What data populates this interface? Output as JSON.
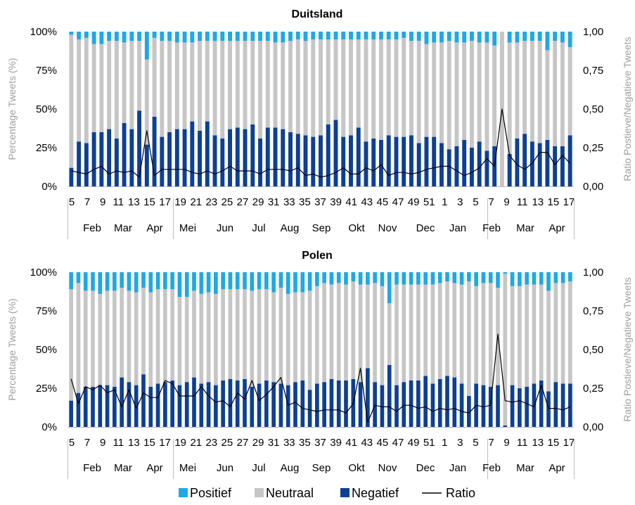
{
  "chart_data": [
    {
      "type": "bar",
      "stacked": true,
      "title": "Duitsland",
      "ylabel": "Percentage Tweets (%)",
      "y2label": "Ratio Postieve/Negatieve Tweets",
      "yticks": [
        "0%",
        "25%",
        "50%",
        "75%",
        "100%"
      ],
      "y2ticks": [
        "0,00",
        "0,25",
        "0,50",
        "0,75",
        "1,00"
      ],
      "ylim": [
        0,
        100
      ],
      "y2lim": [
        0,
        1
      ],
      "week_labels": [
        "5",
        "7",
        "9",
        "11",
        "13",
        "15",
        "17",
        "19",
        "21",
        "23",
        "25",
        "27",
        "29",
        "31",
        "33",
        "35",
        "37",
        "39",
        "41",
        "43",
        "45",
        "47",
        "49",
        "51",
        "1",
        "3",
        "5",
        "7",
        "9",
        "11",
        "13",
        "15",
        "17"
      ],
      "month_labels": [
        "Feb",
        "Mar",
        "Apr",
        "Mei",
        "Jun",
        "Jul",
        "Aug",
        "Sep",
        "Okt",
        "Nov",
        "Dec",
        "Jan",
        "Feb",
        "Mar",
        "Apr"
      ],
      "series": [
        {
          "name": "Negatief",
          "values": [
            12,
            29,
            28,
            35,
            35,
            37,
            31,
            41,
            37,
            49,
            27,
            45,
            32,
            35,
            37,
            37,
            42,
            36,
            42,
            33,
            31,
            37,
            38,
            37,
            40,
            31,
            38,
            38,
            37,
            35,
            34,
            33,
            32,
            33,
            40,
            43,
            32,
            33,
            38,
            29,
            31,
            30,
            33,
            32,
            32,
            33,
            28,
            32,
            32,
            28,
            24,
            26,
            30,
            25,
            29,
            23,
            26,
            0,
            21,
            31,
            34,
            29,
            28,
            30,
            26,
            26,
            33
          ]
        },
        {
          "name": "Neutraal",
          "values": [
            86,
            66,
            68,
            57,
            57,
            57,
            63,
            52,
            57,
            45,
            55,
            51,
            62,
            59,
            56,
            56,
            51,
            58,
            52,
            61,
            63,
            57,
            56,
            57,
            54,
            63,
            56,
            55,
            56,
            59,
            61,
            61,
            63,
            62,
            55,
            52,
            63,
            62,
            57,
            66,
            64,
            65,
            62,
            63,
            64,
            61,
            66,
            60,
            61,
            65,
            70,
            67,
            63,
            69,
            64,
            70,
            65,
            100,
            72,
            62,
            60,
            65,
            66,
            58,
            68,
            67,
            57
          ]
        },
        {
          "name": "Positief",
          "values": [
            2,
            5,
            4,
            8,
            8,
            6,
            6,
            7,
            6,
            6,
            18,
            4,
            6,
            6,
            7,
            7,
            7,
            6,
            6,
            6,
            6,
            6,
            6,
            6,
            6,
            6,
            6,
            7,
            7,
            6,
            5,
            6,
            5,
            5,
            5,
            5,
            5,
            5,
            5,
            5,
            5,
            5,
            5,
            5,
            4,
            6,
            6,
            8,
            7,
            7,
            6,
            7,
            7,
            6,
            7,
            7,
            9,
            0,
            7,
            7,
            6,
            6,
            6,
            12,
            6,
            7,
            10
          ]
        }
      ],
      "ratio": {
        "name": "Ratio",
        "values": [
          0.1,
          0.09,
          0.08,
          0.11,
          0.13,
          0.08,
          0.1,
          0.09,
          0.1,
          0.06,
          0.36,
          0.07,
          0.11,
          0.11,
          0.11,
          0.11,
          0.09,
          0.08,
          0.1,
          0.08,
          0.1,
          0.13,
          0.1,
          0.1,
          0.1,
          0.08,
          0.11,
          0.11,
          0.11,
          0.1,
          0.12,
          0.07,
          0.08,
          0.06,
          0.07,
          0.09,
          0.12,
          0.08,
          0.08,
          0.12,
          0.1,
          0.14,
          0.07,
          0.09,
          0.09,
          0.08,
          0.09,
          0.11,
          0.12,
          0.13,
          0.13,
          0.1,
          0.07,
          0.09,
          0.12,
          0.18,
          0.13,
          0.5,
          0.2,
          0.14,
          0.11,
          0.15,
          0.22,
          0.22,
          0.14,
          0.2,
          0.15
        ]
      }
    },
    {
      "type": "bar",
      "stacked": true,
      "title": "Polen",
      "ylabel": "Percentage Tweets (%)",
      "y2label": "Ratio Postieve/Negatieve Tweets",
      "yticks": [
        "0%",
        "25%",
        "50%",
        "75%",
        "100%"
      ],
      "y2ticks": [
        "0,00",
        "0,25",
        "0,50",
        "0,75",
        "1,00"
      ],
      "ylim": [
        0,
        100
      ],
      "y2lim": [
        0,
        1
      ],
      "week_labels": [
        "5",
        "7",
        "9",
        "11",
        "13",
        "15",
        "17",
        "19",
        "21",
        "23",
        "25",
        "27",
        "29",
        "31",
        "33",
        "35",
        "37",
        "39",
        "41",
        "43",
        "45",
        "47",
        "49",
        "51",
        "1",
        "3",
        "5",
        "7",
        "9",
        "11",
        "13",
        "15",
        "17"
      ],
      "month_labels": [
        "Feb",
        "Mar",
        "Apr",
        "Mei",
        "Jun",
        "Jul",
        "Aug",
        "Sep",
        "Okt",
        "Nov",
        "Dec",
        "Jan",
        "Feb",
        "Mar",
        "Apr"
      ],
      "series": [
        {
          "name": "Negatief",
          "values": [
            17,
            22,
            26,
            26,
            27,
            27,
            26,
            32,
            29,
            27,
            34,
            26,
            28,
            29,
            30,
            27,
            29,
            32,
            28,
            29,
            27,
            30,
            31,
            30,
            31,
            26,
            28,
            30,
            29,
            28,
            27,
            29,
            30,
            24,
            28,
            29,
            31,
            30,
            30,
            31,
            29,
            38,
            29,
            27,
            40,
            27,
            29,
            30,
            30,
            33,
            28,
            31,
            33,
            32,
            28,
            20,
            28,
            27,
            26,
            27,
            1,
            27,
            25,
            26,
            28,
            30,
            23,
            29,
            28,
            28
          ]
        },
        {
          "name": "Neutraal",
          "values": [
            72,
            71,
            62,
            62,
            59,
            61,
            62,
            58,
            59,
            60,
            56,
            61,
            61,
            60,
            59,
            57,
            55,
            56,
            58,
            58,
            59,
            59,
            58,
            59,
            58,
            62,
            61,
            59,
            58,
            62,
            59,
            58,
            57,
            64,
            63,
            64,
            61,
            63,
            62,
            63,
            63,
            54,
            64,
            64,
            40,
            65,
            63,
            62,
            62,
            59,
            64,
            62,
            61,
            61,
            64,
            74,
            63,
            66,
            67,
            63,
            98,
            64,
            66,
            66,
            64,
            62,
            65,
            64,
            65,
            66
          ]
        },
        {
          "name": "Positief",
          "values": [
            11,
            7,
            12,
            12,
            14,
            12,
            12,
            10,
            12,
            13,
            10,
            13,
            11,
            11,
            11,
            16,
            16,
            12,
            14,
            13,
            14,
            11,
            11,
            11,
            11,
            12,
            11,
            11,
            13,
            10,
            14,
            13,
            13,
            12,
            9,
            7,
            8,
            7,
            8,
            6,
            8,
            8,
            7,
            9,
            20,
            8,
            8,
            8,
            8,
            8,
            8,
            7,
            6,
            7,
            8,
            6,
            9,
            7,
            7,
            10,
            1,
            9,
            9,
            8,
            8,
            8,
            12,
            7,
            7,
            6
          ]
        }
      ],
      "ratio": {
        "name": "Ratio",
        "values": [
          0.31,
          0.15,
          0.26,
          0.24,
          0.27,
          0.22,
          0.24,
          0.13,
          0.24,
          0.12,
          0.22,
          0.19,
          0.19,
          0.3,
          0.28,
          0.2,
          0.2,
          0.2,
          0.26,
          0.2,
          0.16,
          0.17,
          0.13,
          0.22,
          0.18,
          0.3,
          0.17,
          0.21,
          0.26,
          0.32,
          0.14,
          0.16,
          0.12,
          0.11,
          0.1,
          0.11,
          0.11,
          0.11,
          0.09,
          0.15,
          0.38,
          0.03,
          0.14,
          0.13,
          0.13,
          0.1,
          0.14,
          0.14,
          0.12,
          0.13,
          0.1,
          0.12,
          0.11,
          0.12,
          0.1,
          0.09,
          0.14,
          0.13,
          0.14,
          0.6,
          0.17,
          0.16,
          0.17,
          0.15,
          0.13,
          0.27,
          0.12,
          0.12,
          0.11,
          0.13
        ]
      }
    }
  ],
  "legend": [
    {
      "label": "Positief",
      "color": "#1ea8e6",
      "kind": "swatch"
    },
    {
      "label": "Neutraal",
      "color": "#c6c6c6",
      "kind": "swatch"
    },
    {
      "label": "Negatief",
      "color": "#0d3f95",
      "kind": "swatch"
    },
    {
      "label": "Ratio",
      "color": "#000000",
      "kind": "line"
    }
  ],
  "colors": {
    "positief": "#1ea8e6",
    "neutraal": "#c6c6c6",
    "negatief": "#0d3f95",
    "ratio": "#000000",
    "axis_label": "#9e9e9e",
    "axis_line": "#bdbdbd"
  }
}
